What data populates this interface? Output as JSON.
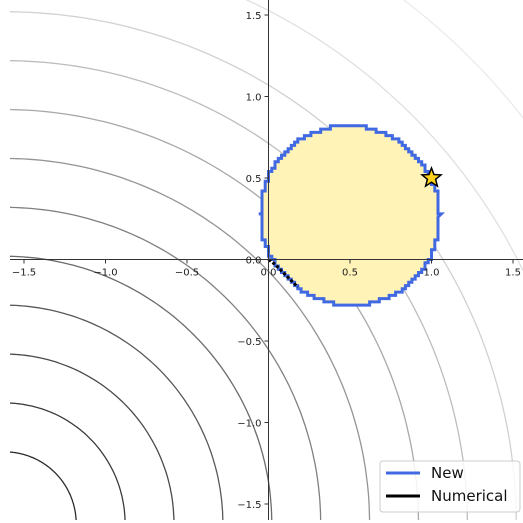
{
  "chart_data": {
    "type": "line",
    "title": "",
    "xlabel": "",
    "ylabel": "",
    "xlim": [
      -1.6,
      1.6
    ],
    "ylim": [
      -1.6,
      1.6
    ],
    "x_ticks": [
      -1.5,
      -1.0,
      -0.5,
      0.0,
      0.5,
      1.0,
      1.5
    ],
    "x_tick_labels": [
      "−1.5",
      "−1.0",
      "−0.5",
      "0.0",
      "0.5",
      "1.0",
      "1.5"
    ],
    "y_ticks": [
      1.5,
      1.0,
      0.5,
      0.0,
      -0.5,
      -1.0,
      -1.5
    ],
    "y_tick_labels": [
      "1.5",
      "1.0",
      "0.5",
      "0.0",
      "−0.5",
      "−1.0",
      "−1.5"
    ],
    "grid": false,
    "legend_position": "lower-right",
    "colors": {
      "new": "#4169e1",
      "numerical": "#000000",
      "region_fill": "#fff3b8",
      "star_fill": "#ffd21a",
      "star_edge": "#000000"
    },
    "contour_levels": [
      {
        "c": -2.8,
        "gray": 0.17
      },
      {
        "c": -2.5,
        "gray": 0.23
      },
      {
        "c": -2.2,
        "gray": 0.29
      },
      {
        "c": -1.9,
        "gray": 0.35
      },
      {
        "c": -1.6,
        "gray": 0.42
      },
      {
        "c": -1.3,
        "gray": 0.5
      },
      {
        "c": -1.0,
        "gray": 0.58
      },
      {
        "c": -0.7,
        "gray": 0.66
      },
      {
        "c": -0.4,
        "gray": 0.74
      },
      {
        "c": -0.1,
        "gray": 0.82
      },
      {
        "c": 0.3,
        "gray": 0.88
      },
      {
        "c": 0.8,
        "gray": 0.92
      },
      {
        "c": 1.5,
        "gray": 0.94
      }
    ],
    "region": {
      "shape": "disc",
      "center": [
        0.5,
        0.27
      ],
      "radius": 0.55
    },
    "series": [
      {
        "name": "New",
        "style": "staircase boundary",
        "center": [
          0.5,
          0.27
        ],
        "radius": 0.55,
        "grid_step": 0.02
      },
      {
        "name": "Numerical",
        "style": "line",
        "x": [
          0.0,
          0.04,
          0.08,
          0.12,
          0.16,
          0.18
        ],
        "y": [
          0.0,
          -0.03,
          -0.07,
          -0.11,
          -0.15,
          -0.17
        ]
      }
    ],
    "marker": {
      "symbol": "star",
      "x": 1.0,
      "y": 0.5
    },
    "legend": [
      {
        "label": "New",
        "color": "#4169e1"
      },
      {
        "label": "Numerical",
        "color": "#000000"
      }
    ]
  }
}
